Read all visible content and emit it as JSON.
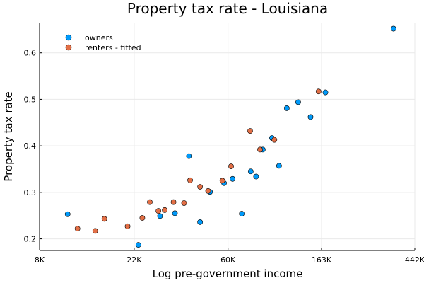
{
  "chart_data": {
    "type": "scatter",
    "title": "Property tax rate - Louisiana",
    "xlabel": "Log pre-government income",
    "ylabel": "Property tax rate",
    "xscale": "log",
    "xlim": [
      8000,
      442000
    ],
    "ylim": [
      0.175,
      0.665
    ],
    "xticks": [
      {
        "value": 8000,
        "label": "8K"
      },
      {
        "value": 22000,
        "label": "22K"
      },
      {
        "value": 60000,
        "label": "60K"
      },
      {
        "value": 163000,
        "label": "163K"
      },
      {
        "value": 442000,
        "label": "442K"
      }
    ],
    "yticks": [
      {
        "value": 0.2,
        "label": "0.2"
      },
      {
        "value": 0.3,
        "label": "0.3"
      },
      {
        "value": 0.4,
        "label": "0.4"
      },
      {
        "value": 0.5,
        "label": "0.5"
      },
      {
        "value": 0.6,
        "label": "0.6"
      }
    ],
    "grid": true,
    "legend_position": "top-left",
    "series": [
      {
        "name": "owners",
        "color": "#009AFA",
        "points": [
          {
            "x": 10800,
            "y": 0.253
          },
          {
            "x": 23000,
            "y": 0.187
          },
          {
            "x": 29000,
            "y": 0.249
          },
          {
            "x": 34000,
            "y": 0.255
          },
          {
            "x": 39500,
            "y": 0.378
          },
          {
            "x": 44500,
            "y": 0.236
          },
          {
            "x": 49500,
            "y": 0.301
          },
          {
            "x": 57500,
            "y": 0.32
          },
          {
            "x": 63000,
            "y": 0.329
          },
          {
            "x": 69500,
            "y": 0.254
          },
          {
            "x": 76500,
            "y": 0.345
          },
          {
            "x": 81000,
            "y": 0.334
          },
          {
            "x": 87000,
            "y": 0.392
          },
          {
            "x": 96000,
            "y": 0.417
          },
          {
            "x": 103500,
            "y": 0.357
          },
          {
            "x": 112500,
            "y": 0.481
          },
          {
            "x": 127000,
            "y": 0.494
          },
          {
            "x": 145000,
            "y": 0.462
          },
          {
            "x": 170000,
            "y": 0.515
          },
          {
            "x": 352000,
            "y": 0.652
          }
        ]
      },
      {
        "name": "renters - fitted",
        "color": "#E26F46",
        "points": [
          {
            "x": 12000,
            "y": 0.222
          },
          {
            "x": 14500,
            "y": 0.217
          },
          {
            "x": 16000,
            "y": 0.243
          },
          {
            "x": 20500,
            "y": 0.227
          },
          {
            "x": 24000,
            "y": 0.245
          },
          {
            "x": 26000,
            "y": 0.279
          },
          {
            "x": 28500,
            "y": 0.26
          },
          {
            "x": 30500,
            "y": 0.262
          },
          {
            "x": 33500,
            "y": 0.279
          },
          {
            "x": 37500,
            "y": 0.277
          },
          {
            "x": 40000,
            "y": 0.326
          },
          {
            "x": 44500,
            "y": 0.312
          },
          {
            "x": 48500,
            "y": 0.303
          },
          {
            "x": 56500,
            "y": 0.325
          },
          {
            "x": 62000,
            "y": 0.356
          },
          {
            "x": 76000,
            "y": 0.432
          },
          {
            "x": 84500,
            "y": 0.392
          },
          {
            "x": 98500,
            "y": 0.413
          },
          {
            "x": 158000,
            "y": 0.517
          }
        ]
      }
    ]
  }
}
